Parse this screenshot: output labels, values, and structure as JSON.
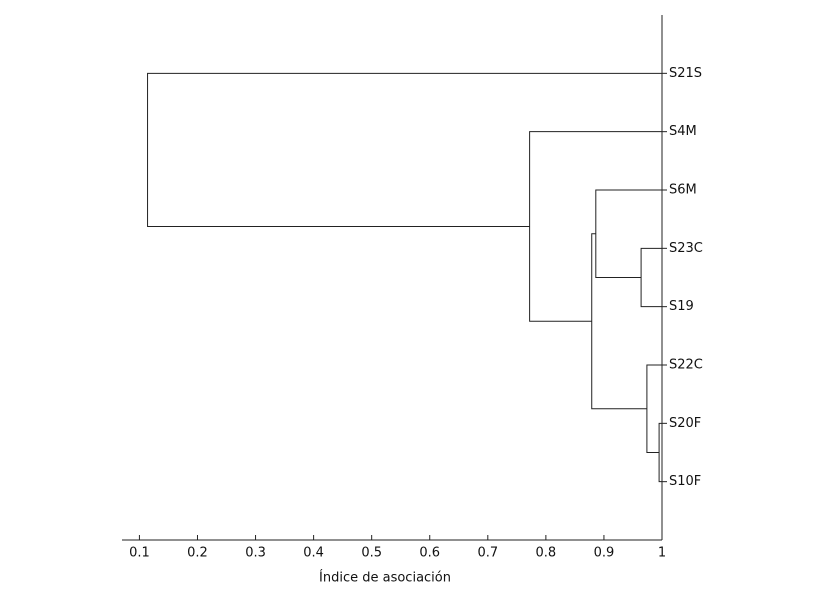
{
  "chart_data": {
    "type": "dendrogram",
    "xlabel": "Índice de asociación",
    "leaves": [
      "S21S",
      "S4M",
      "S6M",
      "S23C",
      "S19",
      "S22C",
      "S20F",
      "S10F"
    ],
    "merges": [
      {
        "left": 3,
        "right": 4,
        "height": 0.964
      },
      {
        "left": 6,
        "right": 7,
        "height": 0.995
      },
      {
        "left": 5,
        "right": 9,
        "height": 0.974
      },
      {
        "left": 2,
        "right": 8,
        "height": 0.886
      },
      {
        "left": 11,
        "right": 10,
        "height": 0.879
      },
      {
        "left": 1,
        "right": 12,
        "height": 0.772
      },
      {
        "left": 0,
        "right": 13,
        "height": 0.114
      }
    ],
    "xlim": [
      0.07,
      1
    ],
    "xticks": [
      0.1,
      0.2,
      0.3,
      0.4,
      0.5,
      0.6,
      0.7,
      0.8,
      0.9,
      1
    ]
  }
}
